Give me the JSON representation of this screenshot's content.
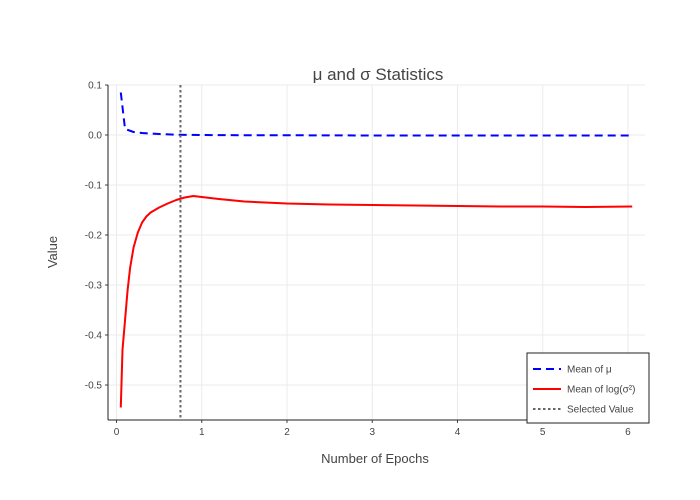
{
  "chart_data": {
    "type": "line",
    "title": "μ and σ Statistics",
    "xlabel": "Number of Epochs",
    "ylabel": "Value",
    "xlim": [
      -0.1,
      6.2
    ],
    "ylim": [
      -0.57,
      0.1
    ],
    "xticks": [
      0,
      1,
      2,
      3,
      4,
      5,
      6
    ],
    "xtick_labels": [
      "0",
      "1",
      "2",
      "3",
      "4",
      "5",
      "6"
    ],
    "yticks": [
      0.1,
      0.0,
      -0.1,
      -0.2,
      -0.3,
      -0.4,
      -0.5
    ],
    "ytick_labels": [
      "0.1",
      "0.0",
      "-0.1",
      "-0.2",
      "-0.3",
      "-0.4",
      "-0.5"
    ],
    "grid": true,
    "legend_position": "bottom-right",
    "series": [
      {
        "name": "Mean of μ",
        "color": "#0000ff",
        "dash": "dashed",
        "x": [
          0.05,
          0.1,
          0.2,
          0.3,
          0.5,
          0.7,
          1.0,
          1.5,
          2.0,
          3.0,
          4.0,
          5.0,
          6.05
        ],
        "y": [
          0.085,
          0.012,
          0.006,
          0.004,
          0.002,
          0.0005,
          0.0,
          -0.0005,
          -0.0005,
          -0.001,
          -0.001,
          -0.001,
          -0.001
        ]
      },
      {
        "name": "Mean of log(σ²)",
        "color": "#ff0000",
        "dash": "solid",
        "x": [
          0.05,
          0.07,
          0.1,
          0.13,
          0.16,
          0.2,
          0.25,
          0.3,
          0.35,
          0.4,
          0.5,
          0.6,
          0.7,
          0.8,
          0.9,
          1.0,
          1.2,
          1.5,
          2.0,
          2.5,
          3.0,
          3.5,
          4.0,
          4.5,
          5.0,
          5.5,
          6.05
        ],
        "y": [
          -0.545,
          -0.43,
          -0.37,
          -0.31,
          -0.265,
          -0.225,
          -0.195,
          -0.175,
          -0.163,
          -0.155,
          -0.145,
          -0.137,
          -0.13,
          -0.125,
          -0.122,
          -0.124,
          -0.128,
          -0.133,
          -0.137,
          -0.139,
          -0.14,
          -0.141,
          -0.142,
          -0.143,
          -0.143,
          -0.144,
          -0.143
        ]
      },
      {
        "name": "Selected Value",
        "color": "#666666",
        "dash": "dotted",
        "type": "vline",
        "x": [
          0.75
        ]
      }
    ]
  }
}
